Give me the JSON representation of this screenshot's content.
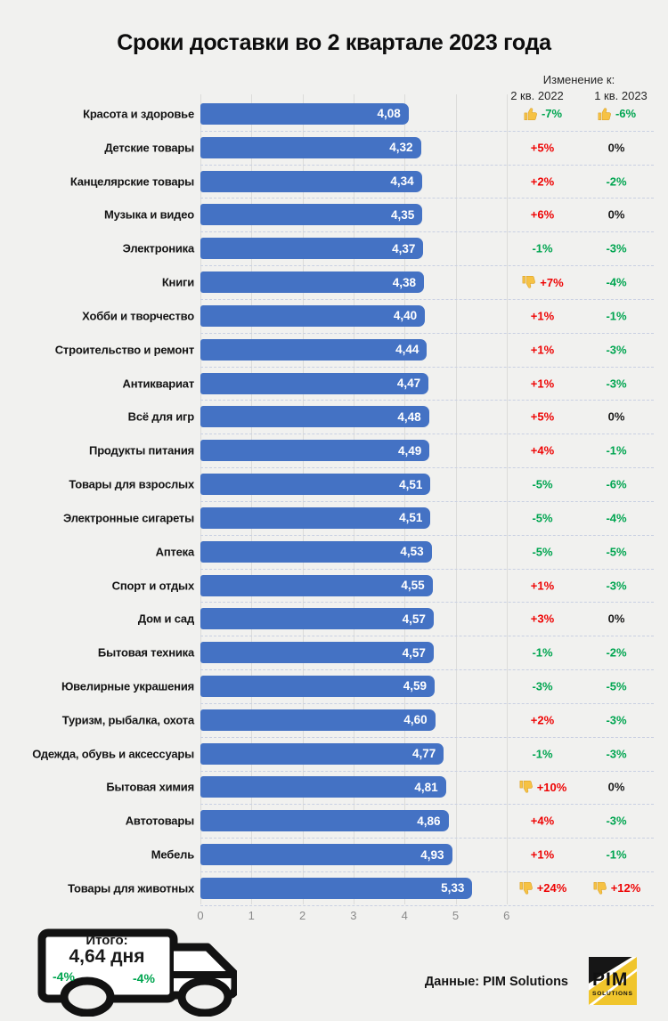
{
  "title": "Сроки доставки во 2 квартале 2023 года",
  "change_header": {
    "title": "Изменение к:",
    "col1": "2 кв. 2022",
    "col2": "1 кв. 2023"
  },
  "axis": {
    "ticks": [
      "0",
      "1",
      "2",
      "3",
      "4",
      "5",
      "6"
    ]
  },
  "rows": [
    {
      "label": "Красота и здоровье",
      "value": "4,08",
      "c1": {
        "text": "-7%",
        "tone": "green",
        "thumb": "up"
      },
      "c2": {
        "text": "-6%",
        "tone": "green",
        "thumb": "up"
      }
    },
    {
      "label": "Детские товары",
      "value": "4,32",
      "c1": {
        "text": "+5%",
        "tone": "red"
      },
      "c2": {
        "text": "0%",
        "tone": "neutral"
      }
    },
    {
      "label": "Канцелярские товары",
      "value": "4,34",
      "c1": {
        "text": "+2%",
        "tone": "red"
      },
      "c2": {
        "text": "-2%",
        "tone": "green"
      }
    },
    {
      "label": "Музыка и видео",
      "value": "4,35",
      "c1": {
        "text": "+6%",
        "tone": "red"
      },
      "c2": {
        "text": "0%",
        "tone": "neutral"
      }
    },
    {
      "label": "Электроника",
      "value": "4,37",
      "c1": {
        "text": "-1%",
        "tone": "green"
      },
      "c2": {
        "text": "-3%",
        "tone": "green"
      }
    },
    {
      "label": "Книги",
      "value": "4,38",
      "c1": {
        "text": "+7%",
        "tone": "red",
        "thumb": "down"
      },
      "c2": {
        "text": "-4%",
        "tone": "green"
      }
    },
    {
      "label": "Хобби и творчество",
      "value": "4,40",
      "c1": {
        "text": "+1%",
        "tone": "red"
      },
      "c2": {
        "text": "-1%",
        "tone": "green"
      }
    },
    {
      "label": "Строительство и ремонт",
      "value": "4,44",
      "c1": {
        "text": "+1%",
        "tone": "red"
      },
      "c2": {
        "text": "-3%",
        "tone": "green"
      }
    },
    {
      "label": "Антиквариат",
      "value": "4,47",
      "c1": {
        "text": "+1%",
        "tone": "red"
      },
      "c2": {
        "text": "-3%",
        "tone": "green"
      }
    },
    {
      "label": "Всё для игр",
      "value": "4,48",
      "c1": {
        "text": "+5%",
        "tone": "red"
      },
      "c2": {
        "text": "0%",
        "tone": "neutral"
      }
    },
    {
      "label": "Продукты питания",
      "value": "4,49",
      "c1": {
        "text": "+4%",
        "tone": "red"
      },
      "c2": {
        "text": "-1%",
        "tone": "green"
      }
    },
    {
      "label": "Товары для взрослых",
      "value": "4,51",
      "c1": {
        "text": "-5%",
        "tone": "green"
      },
      "c2": {
        "text": "-6%",
        "tone": "green"
      }
    },
    {
      "label": "Электронные сигареты",
      "value": "4,51",
      "c1": {
        "text": "-5%",
        "tone": "green"
      },
      "c2": {
        "text": "-4%",
        "tone": "green"
      }
    },
    {
      "label": "Аптека",
      "value": "4,53",
      "c1": {
        "text": "-5%",
        "tone": "green"
      },
      "c2": {
        "text": "-5%",
        "tone": "green"
      }
    },
    {
      "label": "Спорт и отдых",
      "value": "4,55",
      "c1": {
        "text": "+1%",
        "tone": "red"
      },
      "c2": {
        "text": "-3%",
        "tone": "green"
      }
    },
    {
      "label": "Дом и сад",
      "value": "4,57",
      "c1": {
        "text": "+3%",
        "tone": "red"
      },
      "c2": {
        "text": "0%",
        "tone": "neutral"
      }
    },
    {
      "label": "Бытовая техника",
      "value": "4,57",
      "c1": {
        "text": "-1%",
        "tone": "green"
      },
      "c2": {
        "text": "-2%",
        "tone": "green"
      }
    },
    {
      "label": "Ювелирные украшения",
      "value": "4,59",
      "c1": {
        "text": "-3%",
        "tone": "green"
      },
      "c2": {
        "text": "-5%",
        "tone": "green"
      }
    },
    {
      "label": "Туризм, рыбалка, охота",
      "value": "4,60",
      "c1": {
        "text": "+2%",
        "tone": "red"
      },
      "c2": {
        "text": "-3%",
        "tone": "green"
      }
    },
    {
      "label": "Одежда, обувь и аксессуары",
      "value": "4,77",
      "c1": {
        "text": "-1%",
        "tone": "green"
      },
      "c2": {
        "text": "-3%",
        "tone": "green"
      }
    },
    {
      "label": "Бытовая химия",
      "value": "4,81",
      "c1": {
        "text": "+10%",
        "tone": "red",
        "thumb": "down"
      },
      "c2": {
        "text": "0%",
        "tone": "neutral"
      }
    },
    {
      "label": "Автотовары",
      "value": "4,86",
      "c1": {
        "text": "+4%",
        "tone": "red"
      },
      "c2": {
        "text": "-3%",
        "tone": "green"
      }
    },
    {
      "label": "Мебель",
      "value": "4,93",
      "c1": {
        "text": "+1%",
        "tone": "red"
      },
      "c2": {
        "text": "-1%",
        "tone": "green"
      }
    },
    {
      "label": "Товары для животных",
      "value": "5,33",
      "c1": {
        "text": "+24%",
        "tone": "red",
        "thumb": "down"
      },
      "c2": {
        "text": "+12%",
        "tone": "red",
        "thumb": "down"
      }
    }
  ],
  "total": {
    "label": "Итого:",
    "value": "4,64 дня",
    "change_left": "-4%",
    "change_right": "-4%"
  },
  "footer": {
    "source": "Данные: PIM Solutions",
    "logo_title": "PIM",
    "logo_subtitle": "SOLUTIONS"
  },
  "colors": {
    "bar": "#4472c4",
    "increase_red": "#ee0404",
    "decrease_green": "#00a550",
    "neutral": "#1a1a1a",
    "thumb_yellow": "#f6c244",
    "background": "#f1f1ef"
  },
  "chart_data": {
    "type": "bar",
    "orientation": "horizontal",
    "title": "Сроки доставки во 2 квартале 2023 года",
    "xlabel": "",
    "ylabel": "",
    "xlim": [
      0,
      6.4
    ],
    "xticks": [
      0,
      1,
      2,
      3,
      4,
      5,
      6
    ],
    "grid": true,
    "unit": "дни",
    "categories": [
      "Красота и здоровье",
      "Детские товары",
      "Канцелярские товары",
      "Музыка и видео",
      "Электроника",
      "Книги",
      "Хобби и творчество",
      "Строительство и ремонт",
      "Антиквариат",
      "Всё для игр",
      "Продукты питания",
      "Товары для взрослых",
      "Электронные сигареты",
      "Аптека",
      "Спорт и отдых",
      "Дом и сад",
      "Бытовая техника",
      "Ювелирные украшения",
      "Туризм, рыбалка, охота",
      "Одежда, обувь и аксессуары",
      "Бытовая химия",
      "Автотовары",
      "Мебель",
      "Товары для животных"
    ],
    "values": [
      4.08,
      4.32,
      4.34,
      4.35,
      4.37,
      4.38,
      4.4,
      4.44,
      4.47,
      4.48,
      4.49,
      4.51,
      4.51,
      4.53,
      4.55,
      4.57,
      4.57,
      4.59,
      4.6,
      4.77,
      4.81,
      4.86,
      4.93,
      5.33
    ],
    "series": [
      {
        "name": "Изменение к 2 кв. 2022",
        "values": [
          "-7%",
          "+5%",
          "+2%",
          "+6%",
          "-1%",
          "+7%",
          "+1%",
          "+1%",
          "+1%",
          "+5%",
          "+4%",
          "-5%",
          "-5%",
          "-5%",
          "+1%",
          "+3%",
          "-1%",
          "-3%",
          "+2%",
          "-1%",
          "+10%",
          "+4%",
          "+1%",
          "+24%"
        ]
      },
      {
        "name": "Изменение к 1 кв. 2023",
        "values": [
          "-6%",
          "0%",
          "-2%",
          "0%",
          "-3%",
          "-4%",
          "-1%",
          "-3%",
          "-3%",
          "0%",
          "-1%",
          "-6%",
          "-4%",
          "-5%",
          "-3%",
          "0%",
          "-2%",
          "-5%",
          "-3%",
          "-3%",
          "0%",
          "-3%",
          "-1%",
          "+12%"
        ]
      }
    ],
    "total": {
      "label": "Итого",
      "value": 4.64,
      "change_vs_q2_2022": "-4%",
      "change_vs_q1_2023": "-4%"
    }
  }
}
